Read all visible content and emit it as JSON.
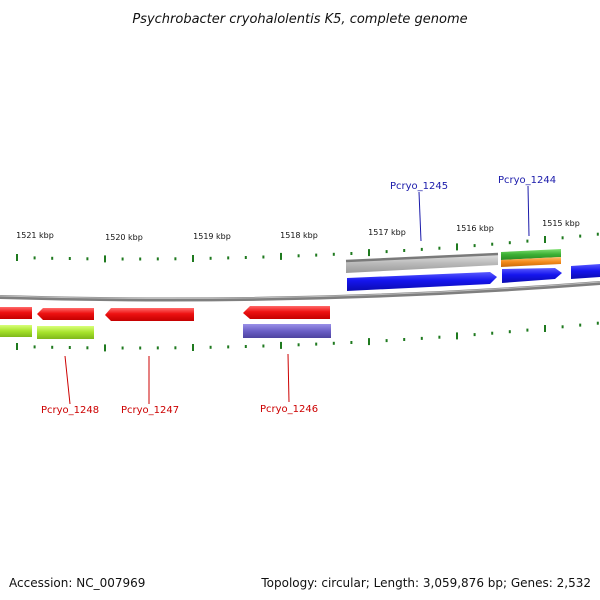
{
  "title": "Psychrobacter cryohalolentis K5, complete genome",
  "footer": {
    "accession": "Accession: NC_007969",
    "summary": "Topology: circular; Length: 3,059,876 bp; Genes: 2,532"
  },
  "tick_labels": [
    "1521 kbp",
    "1520 kbp",
    "1519 kbp",
    "1518 kbp",
    "1517 kbp",
    "1516 kbp",
    "1515 kbp"
  ],
  "gene_labels": {
    "top": [
      "Pcryo_1245",
      "Pcryo_1244"
    ],
    "bottom": [
      "Pcryo_1248",
      "Pcryo_1247",
      "Pcryo_1246"
    ]
  },
  "colors": {
    "top_label": "#1a1aaa",
    "bottom_label": "#cc0000",
    "tick": "#1f7a1f",
    "backbone": "#7f7f7f",
    "gene_red": "#ee1111",
    "gene_blue": "#1515ee",
    "gene_lime": "#a6e22a",
    "gene_purple": "#6b5fc6",
    "gene_gray": "#b9b9b9",
    "gene_green": "#3cb034",
    "gene_orange": "#f48a1a"
  }
}
